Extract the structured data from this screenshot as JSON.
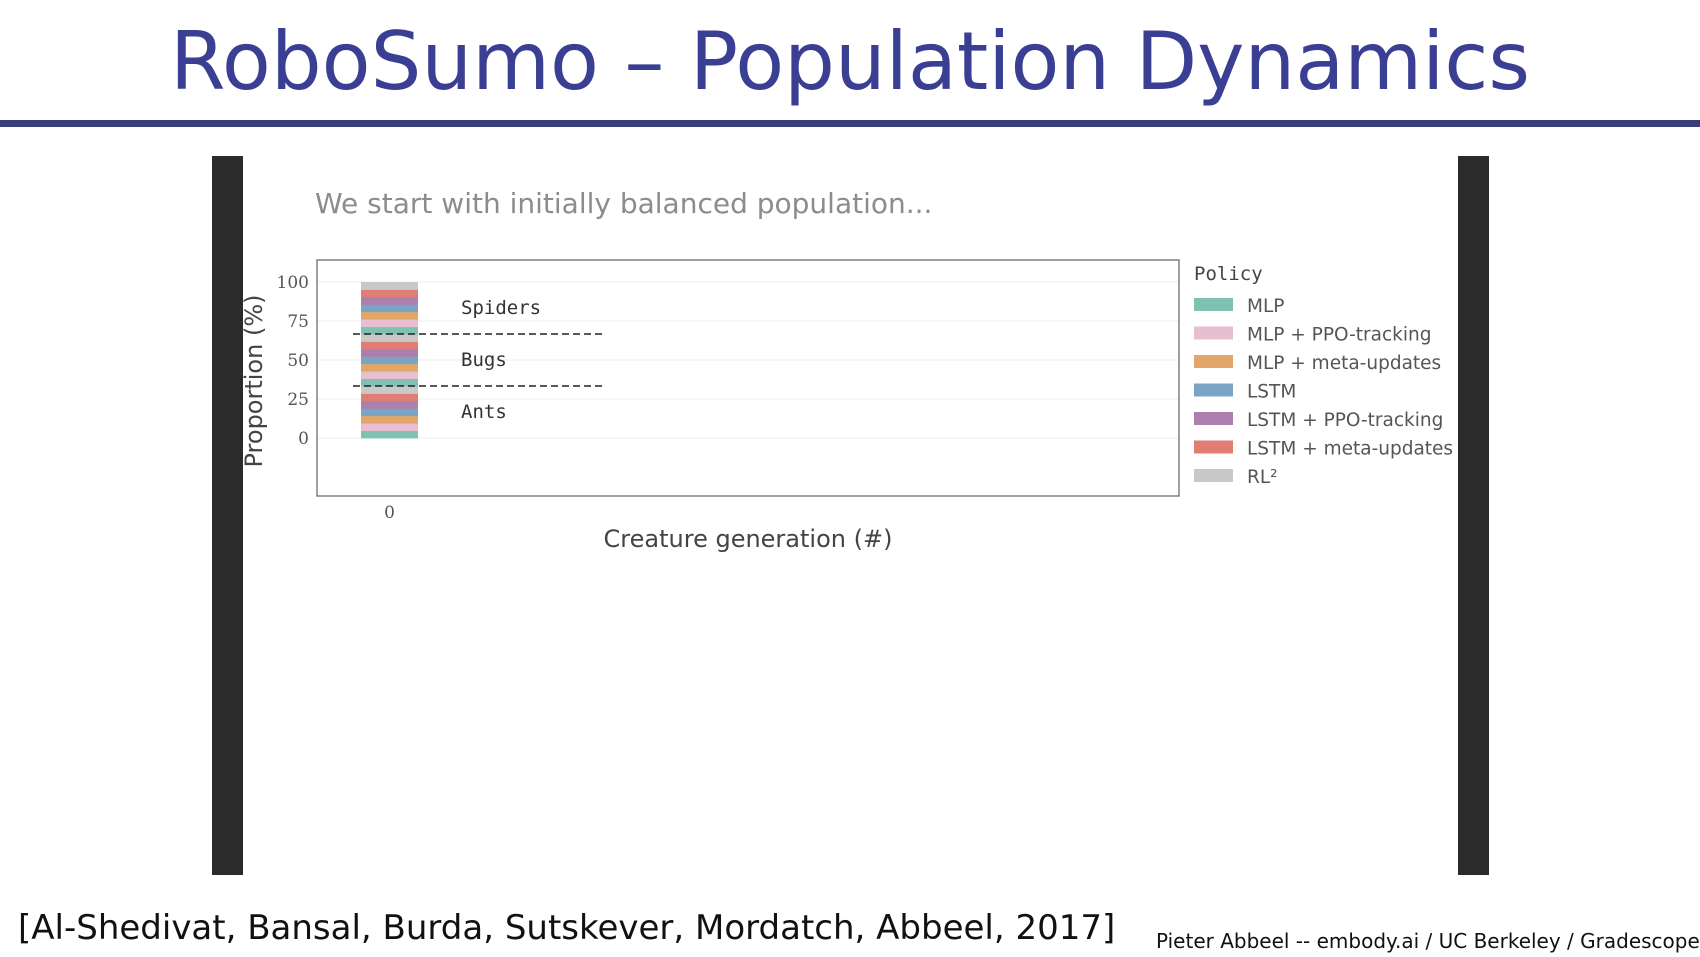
{
  "slide": {
    "title": "RoboSumo – Population Dynamics",
    "citation": "[Al-Shedivat, Bansal, Burda, Sutskever, Mordatch, Abbeel, 2017]",
    "footer": "Pieter Abbeel -- embody.ai / UC Berkeley / Gradescope"
  },
  "video": {
    "caption": "We start with initially balanced population..."
  },
  "chart_data": {
    "type": "bar",
    "stacked": true,
    "categories": [
      "0"
    ],
    "xlabel": "Creature generation (#)",
    "ylabel": "Proportion (%)",
    "ylim": [
      0,
      100
    ],
    "yticks": [
      0,
      25,
      50,
      75,
      100
    ],
    "grid": true,
    "legend": {
      "title": "Policy",
      "placement": "right-outside",
      "entries": [
        {
          "name": "MLP",
          "color": "#7fc2b4"
        },
        {
          "name": "MLP + PPO-tracking",
          "color": "#e8bfd0"
        },
        {
          "name": "MLP + meta-updates",
          "color": "#e3a66a"
        },
        {
          "name": "LSTM",
          "color": "#7ba3c4"
        },
        {
          "name": "LSTM + PPO-tracking",
          "color": "#ad7fae"
        },
        {
          "name": "LSTM + meta-updates",
          "color": "#e07d74"
        },
        {
          "name": "RL²",
          "color": "#c8c8c8"
        }
      ]
    },
    "groups": [
      {
        "name": "Ants",
        "range": [
          0,
          33.33
        ]
      },
      {
        "name": "Bugs",
        "range": [
          33.33,
          66.67
        ]
      },
      {
        "name": "Spiders",
        "range": [
          66.67,
          100
        ]
      }
    ],
    "series": [
      {
        "name": "Ants / MLP",
        "values": [
          4.76
        ]
      },
      {
        "name": "Ants / MLP + PPO-tracking",
        "values": [
          4.76
        ]
      },
      {
        "name": "Ants / MLP + meta-updates",
        "values": [
          4.76
        ]
      },
      {
        "name": "Ants / LSTM",
        "values": [
          4.76
        ]
      },
      {
        "name": "Ants / LSTM + PPO-tracking",
        "values": [
          4.76
        ]
      },
      {
        "name": "Ants / LSTM + meta-updates",
        "values": [
          4.76
        ]
      },
      {
        "name": "Ants / RL²",
        "values": [
          4.76
        ]
      },
      {
        "name": "Bugs / MLP",
        "values": [
          4.76
        ]
      },
      {
        "name": "Bugs / MLP + PPO-tracking",
        "values": [
          4.76
        ]
      },
      {
        "name": "Bugs / MLP + meta-updates",
        "values": [
          4.76
        ]
      },
      {
        "name": "Bugs / LSTM",
        "values": [
          4.76
        ]
      },
      {
        "name": "Bugs / LSTM + PPO-tracking",
        "values": [
          4.76
        ]
      },
      {
        "name": "Bugs / LSTM + meta-updates",
        "values": [
          4.76
        ]
      },
      {
        "name": "Bugs / RL²",
        "values": [
          4.76
        ]
      },
      {
        "name": "Spiders / MLP",
        "values": [
          4.76
        ]
      },
      {
        "name": "Spiders / MLP + PPO-tracking",
        "values": [
          4.76
        ]
      },
      {
        "name": "Spiders / MLP + meta-updates",
        "values": [
          4.76
        ]
      },
      {
        "name": "Spiders / LSTM",
        "values": [
          4.76
        ]
      },
      {
        "name": "Spiders / LSTM + PPO-tracking",
        "values": [
          4.76
        ]
      },
      {
        "name": "Spiders / LSTM + meta-updates",
        "values": [
          4.76
        ]
      },
      {
        "name": "Spiders / RL²",
        "values": [
          4.76
        ]
      }
    ]
  }
}
